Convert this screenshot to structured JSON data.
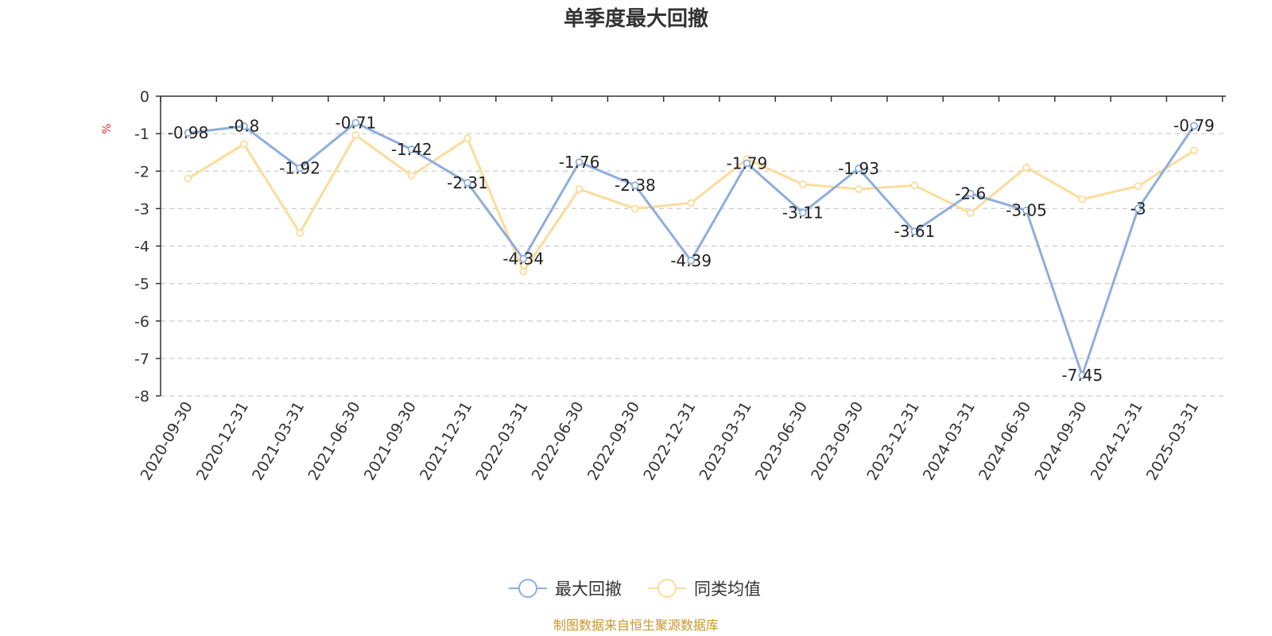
{
  "chart_data": {
    "type": "line",
    "title": "单季度最大回撤",
    "ylabel": "%",
    "ylim": [
      -8,
      0
    ],
    "yticks": [
      0,
      -1,
      -2,
      -3,
      -4,
      -5,
      -6,
      -7,
      -8
    ],
    "grid": true,
    "legend_position": "bottom",
    "categories": [
      "2020-09-30",
      "2020-12-31",
      "2021-03-31",
      "2021-06-30",
      "2021-09-30",
      "2021-12-31",
      "2022-03-31",
      "2022-06-30",
      "2022-09-30",
      "2022-12-31",
      "2023-03-31",
      "2023-06-30",
      "2023-09-30",
      "2023-12-31",
      "2024-03-31",
      "2024-06-30",
      "2024-09-30",
      "2024-12-31",
      "2025-03-31"
    ],
    "series": [
      {
        "name": "最大回撤",
        "color": "#8eaedb",
        "show_labels": true,
        "values": [
          -0.98,
          -0.8,
          -1.92,
          -0.71,
          -1.42,
          -2.31,
          -4.34,
          -1.76,
          -2.38,
          -4.39,
          -1.79,
          -3.11,
          -1.93,
          -3.61,
          -2.6,
          -3.05,
          -7.45,
          -3,
          -0.79
        ]
      },
      {
        "name": "同类均值",
        "color": "#fbdc9b",
        "show_labels": false,
        "values": [
          -2.2,
          -1.28,
          -3.65,
          -1.04,
          -2.12,
          -1.13,
          -4.68,
          -2.48,
          -3.0,
          -2.85,
          -1.68,
          -2.35,
          -2.48,
          -2.38,
          -3.12,
          -1.9,
          -2.75,
          -2.4,
          -1.45
        ]
      }
    ],
    "source_note": "制图数据来自恒生聚源数据库"
  }
}
